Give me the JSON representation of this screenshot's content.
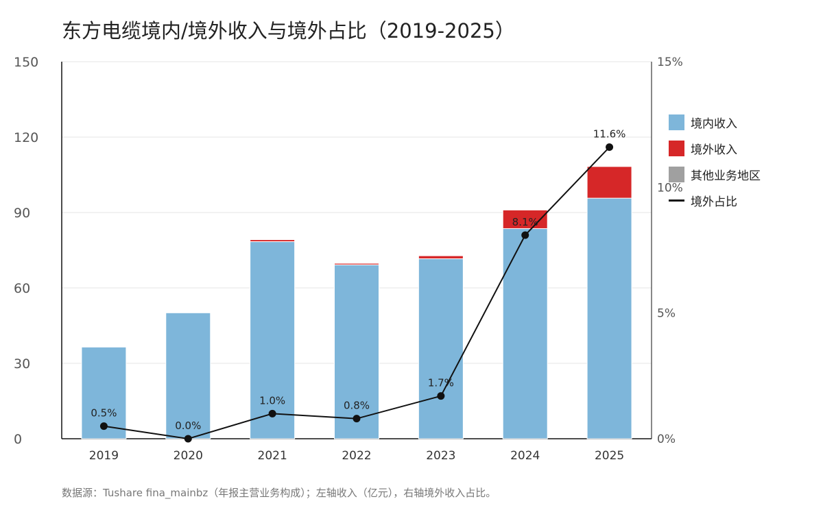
{
  "title": "东方电缆境内/境外收入与境外占比（2019-2025）",
  "footnote": "数据源：Tushare fina_mainbz（年报主营业务构成）；左轴收入（亿元），右轴境外收入占比。",
  "colors": {
    "domestic": "#7eb6da",
    "overseas": "#d62728",
    "other": "#a0a0a0",
    "line": "#111111"
  },
  "legend": [
    {
      "label": "境内收入",
      "kind": "swatch",
      "color": "#7eb6da"
    },
    {
      "label": "境外收入",
      "kind": "swatch",
      "color": "#d62728"
    },
    {
      "label": "其他业务地区",
      "kind": "swatch",
      "color": "#a0a0a0"
    },
    {
      "label": "境外占比",
      "kind": "line",
      "color": "#111111"
    }
  ],
  "chart_data": {
    "type": "bar",
    "categories": [
      "2019",
      "2020",
      "2021",
      "2022",
      "2023",
      "2024",
      "2025"
    ],
    "series": [
      {
        "name": "境内收入",
        "type": "bar",
        "stack": "revenue",
        "axis": "left",
        "values": [
          36.5,
          50.1,
          78.4,
          69.2,
          71.6,
          83.6,
          95.7
        ]
      },
      {
        "name": "境外收入",
        "type": "bar",
        "stack": "revenue",
        "axis": "left",
        "values": [
          0.2,
          0.0,
          0.8,
          0.6,
          1.2,
          7.4,
          12.6
        ]
      },
      {
        "name": "其他业务地区",
        "type": "bar",
        "stack": "revenue",
        "axis": "left",
        "values": [
          0,
          0,
          0,
          0,
          0,
          0,
          0
        ]
      },
      {
        "name": "境外占比",
        "type": "line",
        "axis": "right",
        "values": [
          0.5,
          0.0,
          1.0,
          0.8,
          1.7,
          8.1,
          11.6
        ],
        "labels": [
          "0.5%",
          "0.0%",
          "1.0%",
          "0.8%",
          "1.7%",
          "8.1%",
          "11.6%"
        ]
      }
    ],
    "y_left": {
      "min": 0,
      "max": 150,
      "ticks": [
        "0",
        "30",
        "60",
        "90",
        "120",
        "150"
      ]
    },
    "y_right": {
      "min": 0,
      "max": 15,
      "ticks": [
        "0%",
        "5%",
        "10%",
        "15%"
      ]
    },
    "grid": true,
    "legend_position": "right"
  }
}
